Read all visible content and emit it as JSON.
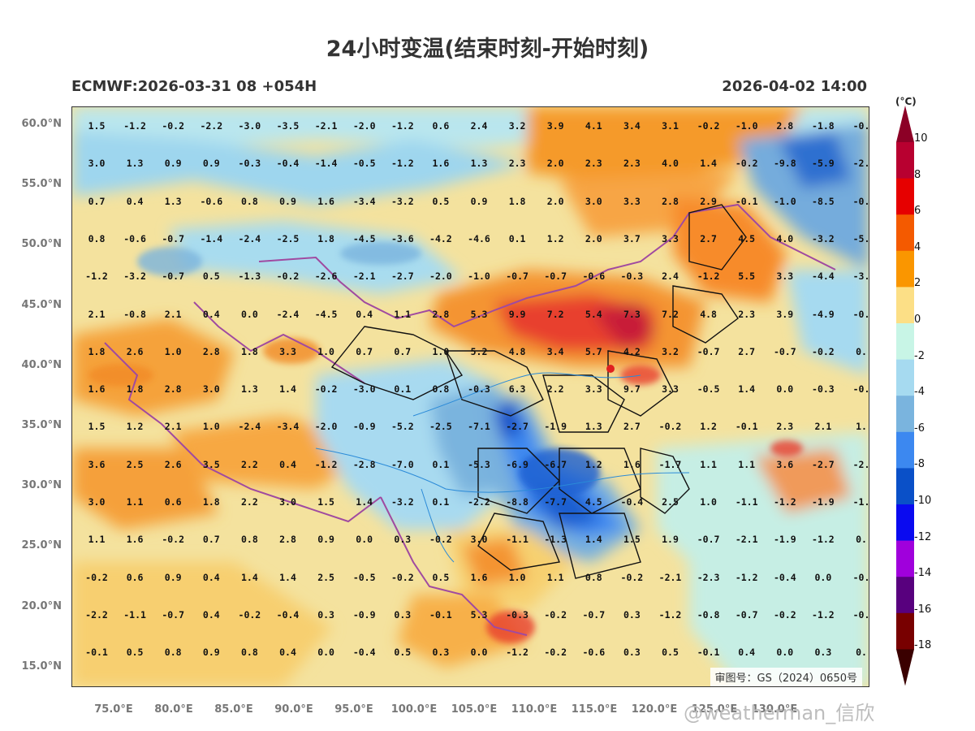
{
  "title": "24小时变温(结束时刻-开始时刻)",
  "subtitle_left": "ECMWF:2026-03-31 08 +054H",
  "subtitle_right": "2026-04-02 14:00",
  "unit": "(°C)",
  "approval": "审图号：GS（2024）0650号",
  "watermark": "@weatherman_信欣",
  "lat_labels": [
    "60.0°N",
    "55.0°N",
    "50.0°N",
    "45.0°N",
    "40.0°N",
    "35.0°N",
    "30.0°N",
    "25.0°N",
    "20.0°N",
    "15.0°N"
  ],
  "lon_labels": [
    "75.0°E",
    "80.0°E",
    "85.0°E",
    "90.0°E",
    "95.0°E",
    "100.0°E",
    "105.0°E",
    "110.0°E",
    "115.0°E",
    "120.0°E",
    "125.0°E",
    "130.0°E"
  ],
  "colorbar_labels": [
    "10",
    "8",
    "6",
    "4",
    "2",
    "0",
    "-2",
    "-4",
    "-6",
    "-8",
    "-10",
    "-12",
    "-14",
    "-16",
    "-18"
  ],
  "colorbar_colors": [
    "#b80030",
    "#e60000",
    "#f45a00",
    "#fa9600",
    "#fcdf86",
    "#c8f5e6",
    "#a6daf0",
    "#7ab4de",
    "#3c88f0",
    "#0a50c8",
    "#0a0af0",
    "#a000dc",
    "#58007e",
    "#780000"
  ],
  "values": [
    [
      "1.5",
      "-1.2",
      "-0.2",
      "-2.2",
      "-3.0",
      "-3.5",
      "-2.1",
      "-2.0",
      "-1.2",
      "0.6",
      "2.4",
      "3.2",
      "3.9",
      "4.1",
      "3.4",
      "3.1",
      "-0.2",
      "-1.0",
      "2.8",
      "-1.8",
      "-0."
    ],
    [
      "3.0",
      "1.3",
      "0.9",
      "0.9",
      "-0.3",
      "-0.4",
      "-1.4",
      "-0.5",
      "-1.2",
      "1.6",
      "1.3",
      "2.3",
      "2.0",
      "2.3",
      "2.3",
      "4.0",
      "1.4",
      "-0.2",
      "-9.8",
      "-5.9",
      "-2."
    ],
    [
      "0.7",
      "0.4",
      "1.3",
      "-0.6",
      "0.8",
      "0.9",
      "1.6",
      "-3.4",
      "-3.2",
      "0.5",
      "0.9",
      "1.8",
      "2.0",
      "3.0",
      "3.3",
      "2.8",
      "2.9",
      "-0.1",
      "-1.0",
      "-8.5",
      "-0."
    ],
    [
      "0.8",
      "-0.6",
      "-0.7",
      "-1.4",
      "-2.4",
      "-2.5",
      "1.8",
      "-4.5",
      "-3.6",
      "-4.2",
      "-4.6",
      "0.1",
      "1.2",
      "2.0",
      "3.7",
      "3.3",
      "2.7",
      "4.5",
      "4.0",
      "-3.2",
      "-5."
    ],
    [
      "-1.2",
      "-3.2",
      "-0.7",
      "0.5",
      "-1.3",
      "-0.2",
      "-2.6",
      "-2.1",
      "-2.7",
      "-2.0",
      "-1.0",
      "-0.7",
      "-0.7",
      "-0.6",
      "-0.3",
      "2.4",
      "-1.2",
      "5.5",
      "3.3",
      "-4.4",
      "-3."
    ],
    [
      "2.1",
      "-0.8",
      "2.1",
      "0.4",
      "0.0",
      "-2.4",
      "-4.5",
      "0.4",
      "1.1",
      "2.8",
      "5.3",
      "9.9",
      "7.2",
      "5.4",
      "7.3",
      "7.2",
      "4.8",
      "2.3",
      "3.9",
      "-4.9",
      "-0."
    ],
    [
      "1.8",
      "2.6",
      "1.0",
      "2.8",
      "1.8",
      "3.3",
      "1.0",
      "0.7",
      "0.7",
      "1.0",
      "5.2",
      "4.8",
      "3.4",
      "5.7",
      "4.2",
      "3.2",
      "-0.7",
      "2.7",
      "-0.7",
      "-0.2",
      "0."
    ],
    [
      "1.6",
      "1.8",
      "2.8",
      "3.0",
      "1.3",
      "1.4",
      "-0.2",
      "-3.0",
      "0.1",
      "0.8",
      "-0.3",
      "6.3",
      "2.2",
      "3.3",
      "9.7",
      "3.3",
      "-0.5",
      "1.4",
      "0.0",
      "-0.3",
      "-0."
    ],
    [
      "1.5",
      "1.2",
      "2.1",
      "1.0",
      "-2.4",
      "-3.4",
      "-2.0",
      "-0.9",
      "-5.2",
      "-2.5",
      "-7.1",
      "-2.7",
      "-1.9",
      "1.3",
      "2.7",
      "-0.2",
      "1.2",
      "-0.1",
      "2.3",
      "2.1",
      "1."
    ],
    [
      "3.6",
      "2.5",
      "2.6",
      "3.5",
      "2.2",
      "0.4",
      "-1.2",
      "-2.8",
      "-7.0",
      "0.1",
      "-5.3",
      "-6.9",
      "-6.7",
      "1.2",
      "1.6",
      "-1.7",
      "1.1",
      "1.1",
      "3.6",
      "-2.7",
      "-2."
    ],
    [
      "3.0",
      "1.1",
      "0.6",
      "1.8",
      "2.2",
      "3.0",
      "1.5",
      "1.4",
      "-3.2",
      "0.1",
      "-2.2",
      "-8.8",
      "-7.7",
      "4.5",
      "-0.4",
      "2.5",
      "1.0",
      "-1.1",
      "-1.2",
      "-1.9",
      "-1."
    ],
    [
      "1.1",
      "1.6",
      "-0.2",
      "0.7",
      "0.8",
      "2.8",
      "0.9",
      "0.0",
      "0.3",
      "-0.2",
      "3.0",
      "-1.1",
      "-1.3",
      "1.4",
      "1.5",
      "1.9",
      "-0.7",
      "-2.1",
      "-1.9",
      "-1.2",
      "0."
    ],
    [
      "-0.2",
      "0.6",
      "0.9",
      "0.4",
      "1.4",
      "1.4",
      "2.5",
      "-0.5",
      "-0.2",
      "0.5",
      "1.6",
      "1.0",
      "1.1",
      "0.8",
      "-0.2",
      "-2.1",
      "-2.3",
      "-1.2",
      "-0.4",
      "0.0",
      "-0."
    ],
    [
      "-2.2",
      "-1.1",
      "-0.7",
      "0.4",
      "-0.2",
      "-0.4",
      "0.3",
      "-0.9",
      "0.3",
      "-0.1",
      "5.3",
      "-0.3",
      "-0.2",
      "-0.7",
      "0.3",
      "-1.2",
      "-0.8",
      "-0.7",
      "-0.2",
      "-1.2",
      "-0."
    ],
    [
      "-0.1",
      "0.5",
      "0.8",
      "0.9",
      "0.8",
      "0.4",
      "0.0",
      "-0.4",
      "0.5",
      "0.3",
      "0.0",
      "-1.2",
      "-0.2",
      "-0.6",
      "0.3",
      "0.5",
      "-0.1",
      "0.4",
      "0.0",
      "0.3",
      "0."
    ]
  ]
}
